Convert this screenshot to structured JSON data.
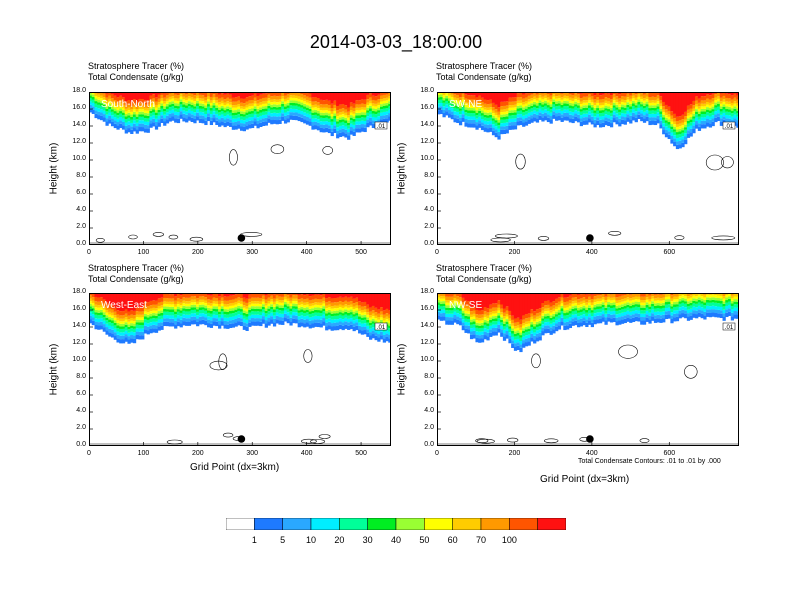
{
  "title": "2014-03-03_18:00:00",
  "field_labels": {
    "line1": "Stratosphere Tracer   (%)",
    "line2": "Total Condensate   (g/kg)"
  },
  "y_axis_label": "Height (km)",
  "x_axis_label": "Grid Point (dx=3km)",
  "contour_note": "Total Condensate Contours: .01 to .01 by .000",
  "contour_box_label": ".01",
  "chart_data": [
    {
      "type": "heatmap",
      "title": "South-North",
      "ylabel": "Height (km)",
      "xlabel": "",
      "ylim": [
        0,
        18
      ],
      "xlim": [
        0,
        555
      ],
      "xticks": [
        0,
        100,
        200,
        300,
        400,
        500
      ],
      "yticks": [
        "0.0",
        "2.0",
        "4.0",
        "6.0",
        "8.0",
        "10.0",
        "12.0",
        "14.0",
        "16.0",
        "18.0"
      ],
      "marker_x": 280,
      "tracer_base_km": [
        15.6,
        14.0,
        13.2,
        13.5,
        14.5,
        14.6,
        14.3,
        13.8,
        13.6,
        14.2,
        14.6,
        14.0,
        13.0,
        12.6,
        13.8,
        14.4
      ]
    },
    {
      "type": "heatmap",
      "title": "SW-NE",
      "ylabel": "Height (km)",
      "xlabel": "",
      "ylim": [
        0,
        18
      ],
      "xlim": [
        0,
        780
      ],
      "xticks": [
        0,
        200,
        400,
        600
      ],
      "yticks": [
        "0.0",
        "2.0",
        "4.0",
        "6.0",
        "8.0",
        "10.0",
        "12.0",
        "14.0",
        "16.0",
        "18.0"
      ],
      "marker_x": 395,
      "tracer_base_km": [
        15.4,
        14.4,
        13.8,
        12.6,
        13.8,
        14.4,
        14.6,
        14.3,
        14.0,
        14.2,
        14.6,
        14.1,
        11.2,
        13.6,
        14.4,
        13.8
      ]
    },
    {
      "type": "heatmap",
      "title": "West-East",
      "ylabel": "Height (km)",
      "xlabel": "Grid Point (dx=3km)",
      "ylim": [
        0,
        18
      ],
      "xlim": [
        0,
        555
      ],
      "xticks": [
        0,
        100,
        200,
        300,
        400,
        500
      ],
      "yticks": [
        "0.0",
        "2.0",
        "4.0",
        "6.0",
        "8.0",
        "10.0",
        "12.0",
        "14.0",
        "16.0",
        "18.0"
      ],
      "marker_x": 280,
      "tracer_base_km": [
        14.4,
        12.8,
        11.8,
        13.4,
        14.0,
        14.3,
        14.2,
        14.0,
        13.8,
        14.3,
        14.4,
        14.1,
        13.8,
        13.9,
        12.6,
        12.2
      ]
    },
    {
      "type": "heatmap",
      "title": "NW-SE",
      "ylabel": "Height (km)",
      "xlabel": "Grid Point (dx=3km)",
      "ylim": [
        0,
        18
      ],
      "xlim": [
        0,
        780
      ],
      "xticks": [
        0,
        200,
        400,
        600
      ],
      "yticks": [
        "0.0",
        "2.0",
        "4.0",
        "6.0",
        "8.0",
        "10.0",
        "12.0",
        "14.0",
        "16.0",
        "18.0"
      ],
      "marker_x": 395,
      "tracer_base_km": [
        14.6,
        14.2,
        12.0,
        13.4,
        11.0,
        12.6,
        13.8,
        14.2,
        14.3,
        14.5,
        14.4,
        14.6,
        14.8,
        15.0,
        15.0,
        15.0
      ]
    }
  ],
  "colorbar": {
    "colors": [
      "#ffffff",
      "#1e7aff",
      "#2aa8ff",
      "#00eeff",
      "#00ff99",
      "#00ee22",
      "#99ff33",
      "#ffff00",
      "#ffcc00",
      "#ff9900",
      "#ff5500",
      "#ff1111"
    ],
    "labels": [
      "1",
      "5",
      "10",
      "20",
      "30",
      "40",
      "50",
      "60",
      "70",
      "100"
    ]
  }
}
